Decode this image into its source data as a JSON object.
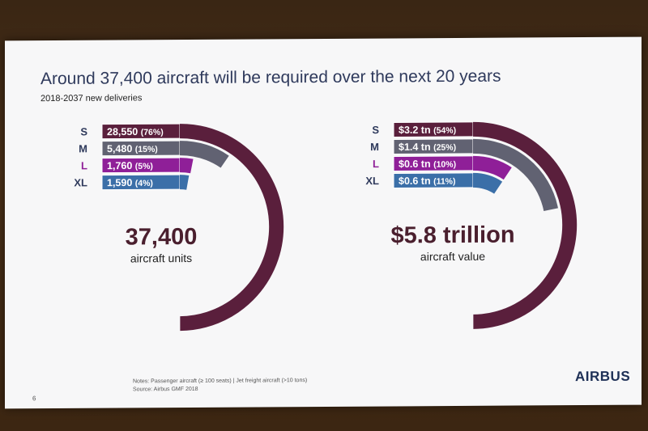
{
  "slide": {
    "title": "Around 37,400 aircraft will be required over the next 20 years",
    "subtitle": "2018-2037 new deliveries",
    "notes_line1": "Notes: Passenger aircraft (≥ 100 seats) | Jet freight aircraft (>10 tons)",
    "notes_line2": "Source: Airbus GMF 2018",
    "page_number": "6",
    "logo": "AIRBUS"
  },
  "colors": {
    "S": "#5a1f3c",
    "M": "#616272",
    "L": "#8f1f98",
    "XL": "#3b6fa8",
    "total_text": "#4a1f2e"
  },
  "chart_data": [
    {
      "type": "radial-bar",
      "categories": [
        "S",
        "M",
        "L",
        "XL"
      ],
      "values": [
        28550,
        5480,
        1760,
        1590
      ],
      "labels": [
        "28,550",
        "5,480",
        "1,760",
        "1,590"
      ],
      "percent_labels": [
        "(76%)",
        "(15%)",
        "(5%)",
        "(4%)"
      ],
      "total": "37,400",
      "total_caption": "aircraft units"
    },
    {
      "type": "radial-bar",
      "categories": [
        "S",
        "M",
        "L",
        "XL"
      ],
      "values": [
        3.2,
        1.4,
        0.6,
        0.6
      ],
      "labels": [
        "$3.2 tn",
        "$1.4 tn",
        "$0.6 tn",
        "$0.6 tn"
      ],
      "percent_labels": [
        "(54%)",
        "(25%)",
        "(10%)",
        "(11%)"
      ],
      "total": "$5.8 trillion",
      "total_caption": "aircraft value"
    }
  ]
}
